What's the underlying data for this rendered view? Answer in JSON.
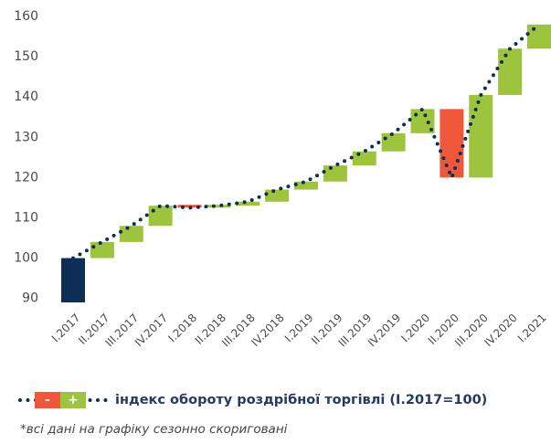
{
  "chart_data": {
    "type": "waterfall",
    "categories": [
      "I.2017",
      "II.2017",
      "III.2017",
      "IV.2017",
      "I.2018",
      "II.2018",
      "III.2018",
      "IV.2018",
      "I.2019",
      "II.2019",
      "III.2019",
      "IV.2019",
      "I.2020",
      "II.2020",
      "III.2020",
      "IV.2020",
      "I.2021"
    ],
    "values": [
      100,
      104,
      108,
      113,
      112.5,
      113,
      114,
      117,
      119,
      123,
      126.5,
      131,
      137,
      120,
      140.5,
      152,
      158
    ],
    "colors": {
      "base": "#0d2f55",
      "increase": "#9dc43c",
      "decrease": "#f0563a",
      "line": "#0d2f55"
    },
    "ylim": [
      89,
      160
    ],
    "yticks": [
      90,
      100,
      110,
      120,
      130,
      140,
      150,
      160
    ],
    "legend": {
      "minus": "-",
      "plus": "+",
      "label": "індекс обороту роздрібної торгівлі (I.2017=100)"
    },
    "note": "*всі дані на графіку сезонно скориговані"
  }
}
